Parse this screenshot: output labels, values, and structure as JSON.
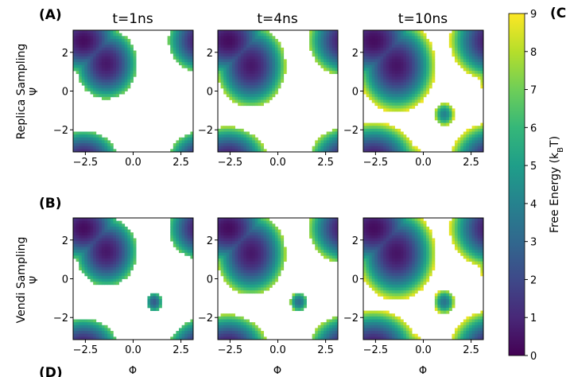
{
  "panel_labels": [
    "(A)",
    "(B)",
    "(C)",
    "(D)"
  ],
  "colors": {
    "viridis": [
      "#440154",
      "#482878",
      "#3e4989",
      "#31688e",
      "#26828e",
      "#1f9e89",
      "#35b779",
      "#6ece58",
      "#b5de2b",
      "#fde725"
    ]
  },
  "chart_data": {
    "type": "heatmap",
    "column_titles": [
      "t=1ns",
      "t=4ns",
      "t=10ns"
    ],
    "row_labels": [
      "Replica Sampling",
      "Vendi Sampling"
    ],
    "xlabel": "Φ",
    "ylabel": "Ψ",
    "xlim": [
      -3.14,
      3.14
    ],
    "ylim": [
      -3.14,
      3.14
    ],
    "xticks": [
      -2.5,
      0.0,
      2.5
    ],
    "xtick_labels": [
      "−2.5",
      "0.0",
      "2.5"
    ],
    "yticks": [
      2,
      0,
      -2
    ],
    "ytick_labels": [
      "2",
      "0",
      "−2"
    ],
    "colorbar": {
      "label": "Free Energy (k_BT)",
      "label_main": "Free Energy (k",
      "label_sub": "B",
      "label_end": "T)",
      "min": 0,
      "max": 9,
      "ticks": [
        0,
        1,
        2,
        3,
        4,
        5,
        6,
        7,
        8,
        9
      ],
      "colormap": "viridis"
    },
    "panels": [
      {
        "row": 0,
        "col": 0,
        "max_fe": 7.0,
        "cut": 7.0,
        "basins": [
          {
            "phi": -2.6,
            "psi": 2.6,
            "fe": 0.3,
            "sphi": 0.9,
            "spsi": 0.8
          },
          {
            "phi": -1.4,
            "psi": 1.4,
            "fe": 0.6,
            "sphi": 0.8,
            "spsi": 0.9
          },
          {
            "phi": -2.6,
            "psi": -3.1,
            "fe": 2.5,
            "sphi": 0.7,
            "spsi": 0.3
          }
        ]
      },
      {
        "row": 0,
        "col": 1,
        "max_fe": 7.8,
        "cut": 7.8,
        "basins": [
          {
            "phi": -2.6,
            "psi": 2.6,
            "fe": 0.3,
            "sphi": 0.95,
            "spsi": 0.85
          },
          {
            "phi": -1.4,
            "psi": 1.3,
            "fe": 0.6,
            "sphi": 0.85,
            "spsi": 1.0
          },
          {
            "phi": -2.6,
            "psi": -3.1,
            "fe": 2.5,
            "sphi": 0.8,
            "spsi": 0.45
          }
        ]
      },
      {
        "row": 0,
        "col": 2,
        "max_fe": 8.8,
        "cut": 8.8,
        "basins": [
          {
            "phi": -2.6,
            "psi": 2.6,
            "fe": 0.3,
            "sphi": 1.0,
            "spsi": 0.9
          },
          {
            "phi": -1.4,
            "psi": 1.3,
            "fe": 0.5,
            "sphi": 0.9,
            "spsi": 1.05
          },
          {
            "phi": -2.6,
            "psi": -3.1,
            "fe": 2.5,
            "sphi": 0.95,
            "spsi": 0.6
          },
          {
            "phi": 1.1,
            "psi": -1.2,
            "fe": 4.0,
            "sphi": 0.3,
            "spsi": 0.35
          }
        ]
      },
      {
        "row": 1,
        "col": 0,
        "max_fe": 6.8,
        "cut": 6.8,
        "basins": [
          {
            "phi": -2.6,
            "psi": 2.6,
            "fe": 0.3,
            "sphi": 0.9,
            "spsi": 0.8
          },
          {
            "phi": -1.4,
            "psi": 1.4,
            "fe": 0.6,
            "sphi": 0.8,
            "spsi": 0.9
          },
          {
            "phi": -2.6,
            "psi": -3.1,
            "fe": 2.5,
            "sphi": 0.7,
            "spsi": 0.3
          },
          {
            "phi": 1.1,
            "psi": -1.2,
            "fe": 2.6,
            "sphi": 0.25,
            "spsi": 0.3
          }
        ]
      },
      {
        "row": 1,
        "col": 1,
        "max_fe": 7.8,
        "cut": 7.8,
        "basins": [
          {
            "phi": -2.6,
            "psi": 2.6,
            "fe": 0.3,
            "sphi": 0.95,
            "spsi": 0.85
          },
          {
            "phi": -1.4,
            "psi": 1.3,
            "fe": 0.6,
            "sphi": 0.85,
            "spsi": 1.0
          },
          {
            "phi": -2.6,
            "psi": -3.1,
            "fe": 2.5,
            "sphi": 0.8,
            "spsi": 0.45
          },
          {
            "phi": 1.1,
            "psi": -1.2,
            "fe": 3.2,
            "sphi": 0.27,
            "spsi": 0.3
          }
        ]
      },
      {
        "row": 1,
        "col": 2,
        "max_fe": 8.8,
        "cut": 8.8,
        "basins": [
          {
            "phi": -2.6,
            "psi": 2.6,
            "fe": 0.3,
            "sphi": 1.0,
            "spsi": 0.9
          },
          {
            "phi": -1.4,
            "psi": 1.3,
            "fe": 0.5,
            "sphi": 0.9,
            "spsi": 1.05
          },
          {
            "phi": -2.6,
            "psi": -3.1,
            "fe": 2.5,
            "sphi": 0.95,
            "spsi": 0.6
          },
          {
            "phi": 1.1,
            "psi": -1.2,
            "fe": 3.5,
            "sphi": 0.3,
            "spsi": 0.35
          }
        ]
      }
    ]
  }
}
